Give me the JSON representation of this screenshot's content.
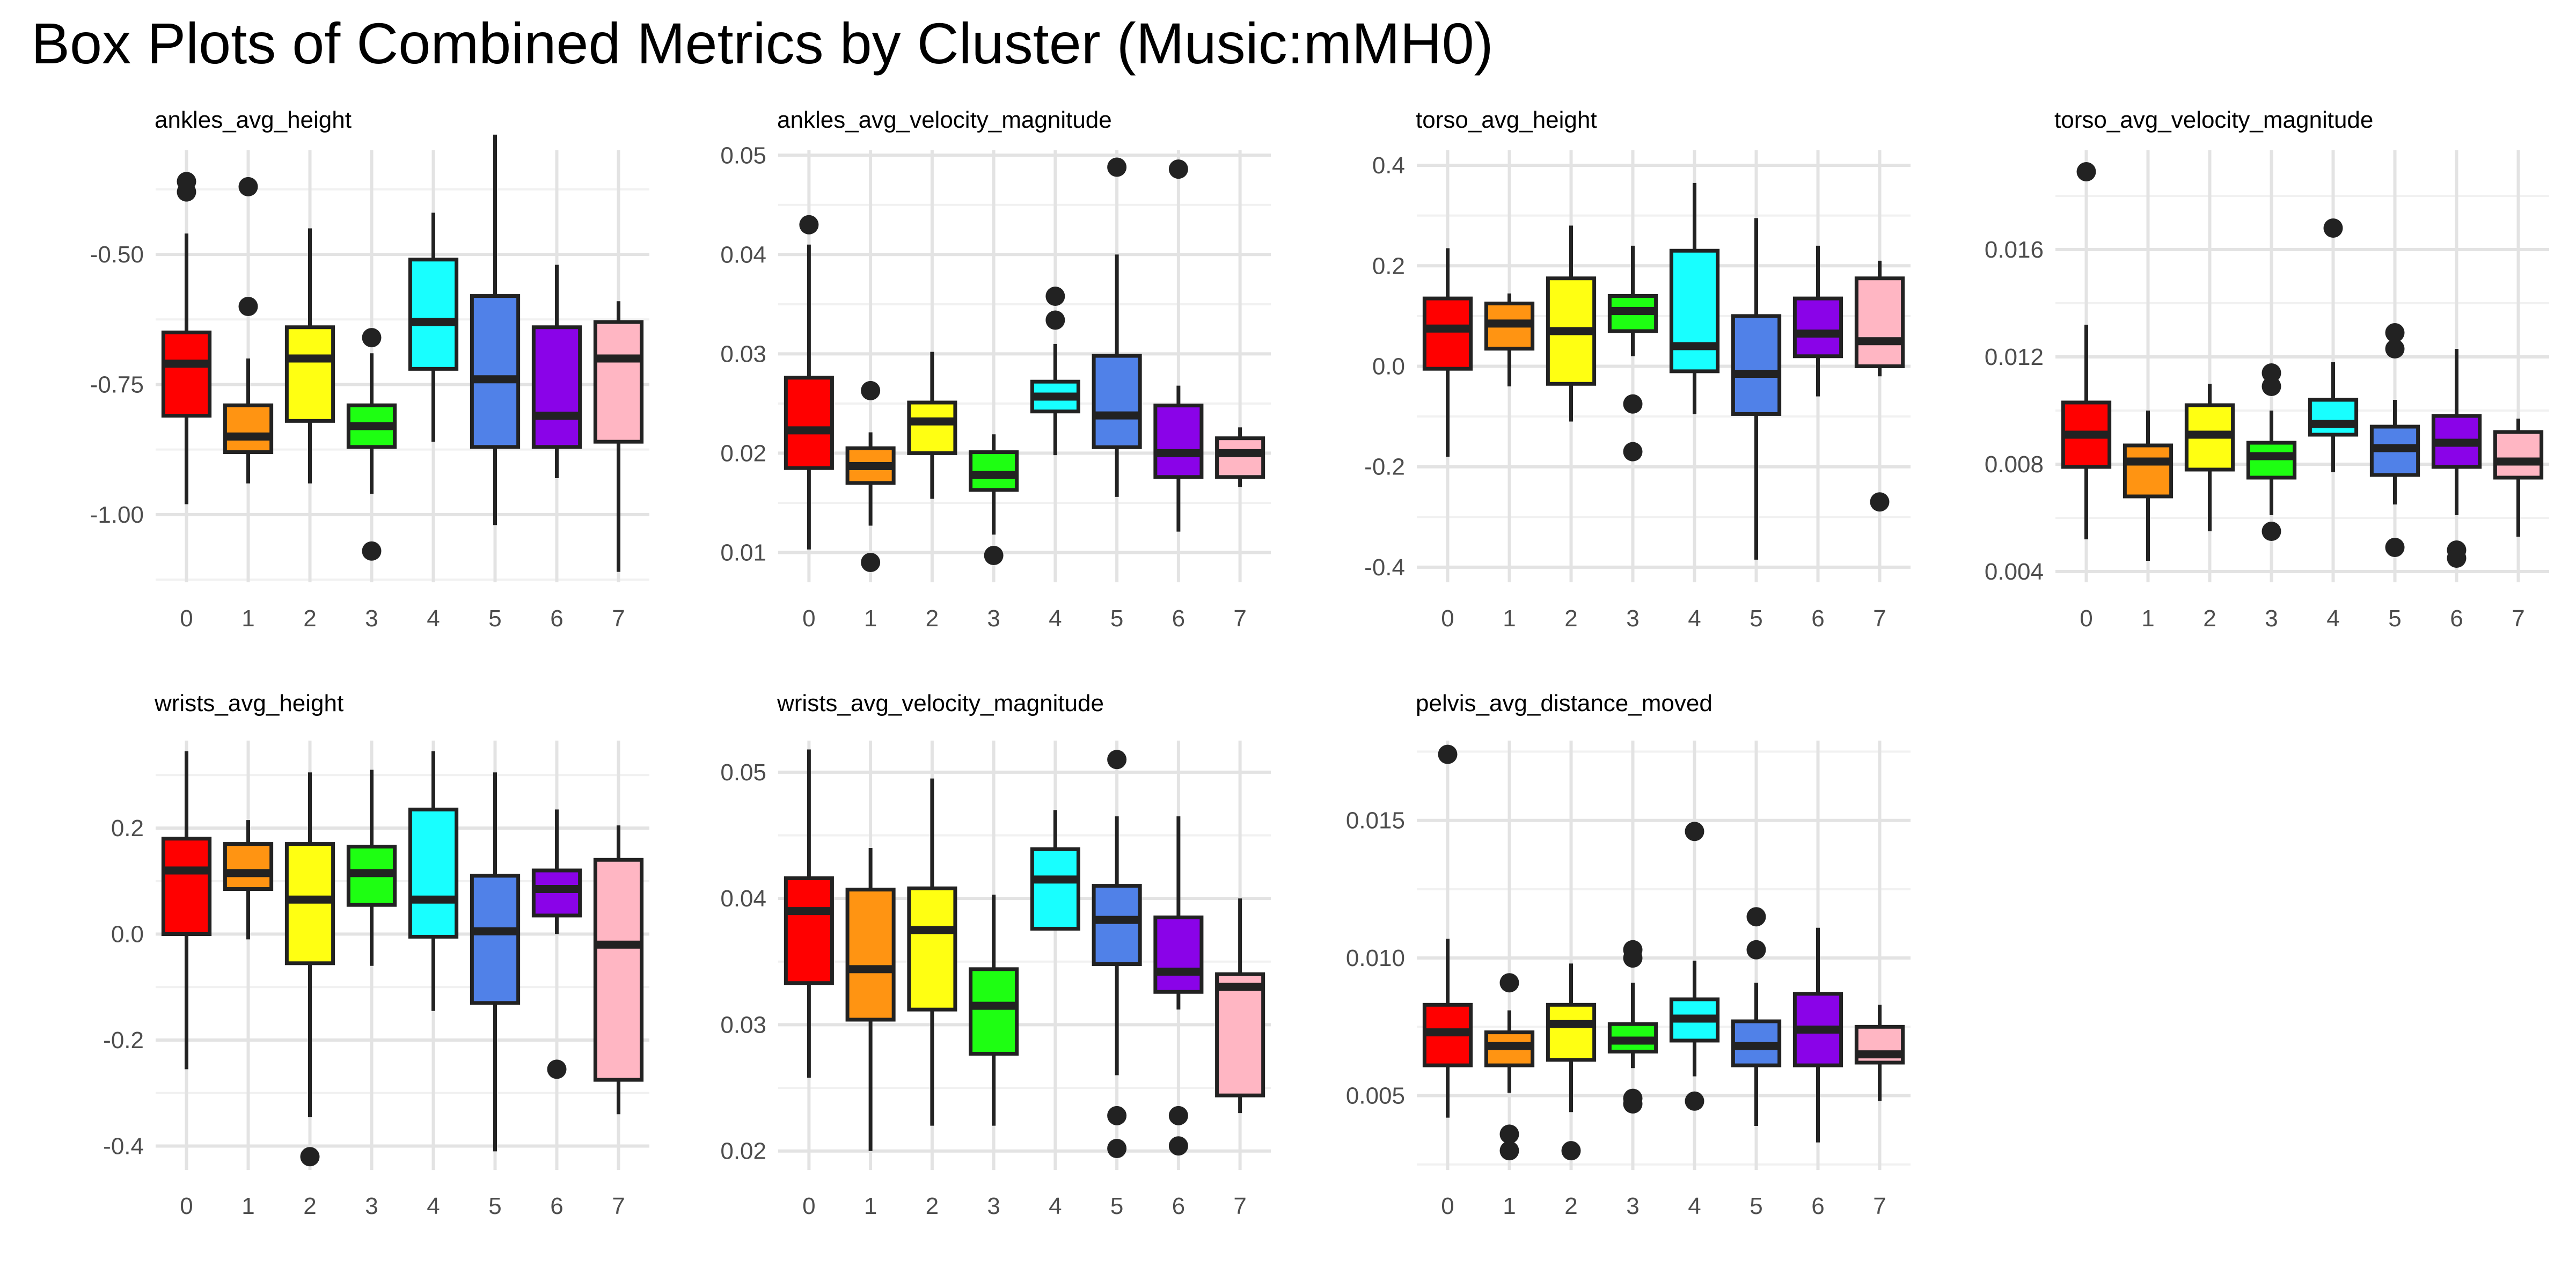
{
  "title": "Box Plots of Combined Metrics by Cluster (Music:mMH0)",
  "colors": {
    "clusters": [
      "#FF0000",
      "#FF9412",
      "#FFFF12",
      "#1EFF12",
      "#18FFFF",
      "#5081E8",
      "#8A03E8",
      "#FFB6C3"
    ],
    "outline": "#222222",
    "grid_major": "#E3E3E3",
    "grid_minor": "#F1F1F1",
    "tick_text": "#4D4D4D"
  },
  "chart_data": [
    {
      "type": "box",
      "title": "ankles_avg_height",
      "categories": [
        "0",
        "1",
        "2",
        "3",
        "4",
        "5",
        "6",
        "7"
      ],
      "ylim": [
        -1.13,
        -0.3
      ],
      "yticks": [
        -1.0,
        -0.75,
        -0.5
      ],
      "ytick_labels": [
        "-1.00",
        "-0.75",
        "-0.50"
      ],
      "boxes": [
        {
          "low": -0.98,
          "q1": -0.81,
          "median": -0.71,
          "q3": -0.65,
          "high": -0.46,
          "outliers": [
            -0.36,
            -0.38
          ]
        },
        {
          "low": -0.94,
          "q1": -0.88,
          "median": -0.85,
          "q3": -0.79,
          "high": -0.7,
          "outliers": [
            -0.37,
            -0.6
          ]
        },
        {
          "low": -0.94,
          "q1": -0.82,
          "median": -0.7,
          "q3": -0.64,
          "high": -0.45,
          "outliers": []
        },
        {
          "low": -0.96,
          "q1": -0.87,
          "median": -0.83,
          "q3": -0.79,
          "high": -0.69,
          "outliers": [
            -0.66,
            -1.07
          ]
        },
        {
          "low": -0.86,
          "q1": -0.72,
          "median": -0.63,
          "q3": -0.51,
          "high": -0.42,
          "outliers": []
        },
        {
          "low": -1.02,
          "q1": -0.87,
          "median": -0.74,
          "q3": -0.58,
          "high": -0.27,
          "outliers": []
        },
        {
          "low": -0.93,
          "q1": -0.87,
          "median": -0.81,
          "q3": -0.64,
          "high": -0.52,
          "outliers": []
        },
        {
          "low": -1.11,
          "q1": -0.86,
          "median": -0.7,
          "q3": -0.63,
          "high": -0.59,
          "outliers": []
        }
      ]
    },
    {
      "type": "box",
      "title": "ankles_avg_velocity_magnitude",
      "categories": [
        "0",
        "1",
        "2",
        "3",
        "4",
        "5",
        "6",
        "7"
      ],
      "ylim": [
        0.007,
        0.0505
      ],
      "yticks": [
        0.01,
        0.02,
        0.03,
        0.04,
        0.05
      ],
      "ytick_labels": [
        "0.01",
        "0.02",
        "0.03",
        "0.04",
        "0.05"
      ],
      "boxes": [
        {
          "low": 0.0103,
          "q1": 0.0185,
          "median": 0.0223,
          "q3": 0.0276,
          "high": 0.041,
          "outliers": [
            0.043
          ]
        },
        {
          "low": 0.0127,
          "q1": 0.017,
          "median": 0.0187,
          "q3": 0.0205,
          "high": 0.0221,
          "outliers": [
            0.0263,
            0.009
          ]
        },
        {
          "low": 0.0154,
          "q1": 0.02,
          "median": 0.0232,
          "q3": 0.0251,
          "high": 0.0302,
          "outliers": []
        },
        {
          "low": 0.0118,
          "q1": 0.0163,
          "median": 0.0178,
          "q3": 0.0201,
          "high": 0.0219,
          "outliers": [
            0.0097
          ]
        },
        {
          "low": 0.0198,
          "q1": 0.0242,
          "median": 0.0257,
          "q3": 0.0272,
          "high": 0.031,
          "outliers": [
            0.0358,
            0.0334
          ]
        },
        {
          "low": 0.0156,
          "q1": 0.0206,
          "median": 0.0238,
          "q3": 0.0298,
          "high": 0.04,
          "outliers": [
            0.0488
          ]
        },
        {
          "low": 0.0121,
          "q1": 0.0176,
          "median": 0.02,
          "q3": 0.0248,
          "high": 0.0268,
          "outliers": [
            0.0486
          ]
        },
        {
          "low": 0.0166,
          "q1": 0.0176,
          "median": 0.02,
          "q3": 0.0215,
          "high": 0.0226,
          "outliers": []
        }
      ]
    },
    {
      "type": "box",
      "title": "torso_avg_height",
      "categories": [
        "0",
        "1",
        "2",
        "3",
        "4",
        "5",
        "6",
        "7"
      ],
      "ylim": [
        -0.43,
        0.43
      ],
      "yticks": [
        -0.4,
        -0.2,
        0.0,
        0.2,
        0.4
      ],
      "ytick_labels": [
        "-0.4",
        "-0.2",
        "0.0",
        "0.2",
        "0.4"
      ],
      "boxes": [
        {
          "low": -0.18,
          "q1": -0.005,
          "median": 0.075,
          "q3": 0.135,
          "high": 0.235,
          "outliers": []
        },
        {
          "low": -0.04,
          "q1": 0.035,
          "median": 0.085,
          "q3": 0.125,
          "high": 0.145,
          "outliers": []
        },
        {
          "low": -0.11,
          "q1": -0.035,
          "median": 0.07,
          "q3": 0.175,
          "high": 0.28,
          "outliers": []
        },
        {
          "low": 0.02,
          "q1": 0.07,
          "median": 0.11,
          "q3": 0.14,
          "high": 0.24,
          "outliers": [
            -0.075,
            -0.17
          ]
        },
        {
          "low": -0.095,
          "q1": -0.01,
          "median": 0.04,
          "q3": 0.23,
          "high": 0.365,
          "outliers": []
        },
        {
          "low": -0.385,
          "q1": -0.095,
          "median": -0.015,
          "q3": 0.1,
          "high": 0.295,
          "outliers": []
        },
        {
          "low": -0.06,
          "q1": 0.02,
          "median": 0.065,
          "q3": 0.135,
          "high": 0.24,
          "outliers": []
        },
        {
          "low": -0.02,
          "q1": 0.0,
          "median": 0.05,
          "q3": 0.175,
          "high": 0.21,
          "outliers": [
            -0.27
          ]
        }
      ]
    },
    {
      "type": "box",
      "title": "torso_avg_velocity_magnitude",
      "categories": [
        "0",
        "1",
        "2",
        "3",
        "4",
        "5",
        "6",
        "7"
      ],
      "ylim": [
        0.0036,
        0.0197
      ],
      "yticks": [
        0.004,
        0.008,
        0.012,
        0.016
      ],
      "ytick_labels": [
        "0.004",
        "0.008",
        "0.012",
        "0.016"
      ],
      "boxes": [
        {
          "low": 0.0052,
          "q1": 0.0079,
          "median": 0.0091,
          "q3": 0.0103,
          "high": 0.0132,
          "outliers": [
            0.0189
          ]
        },
        {
          "low": 0.0044,
          "q1": 0.0068,
          "median": 0.0081,
          "q3": 0.0087,
          "high": 0.01,
          "outliers": []
        },
        {
          "low": 0.0055,
          "q1": 0.0078,
          "median": 0.0091,
          "q3": 0.0102,
          "high": 0.011,
          "outliers": []
        },
        {
          "low": 0.0061,
          "q1": 0.0075,
          "median": 0.0083,
          "q3": 0.0088,
          "high": 0.01,
          "outliers": [
            0.0114,
            0.0109,
            0.0055
          ]
        },
        {
          "low": 0.0077,
          "q1": 0.0091,
          "median": 0.0095,
          "q3": 0.0104,
          "high": 0.0118,
          "outliers": [
            0.0168
          ]
        },
        {
          "low": 0.0065,
          "q1": 0.0076,
          "median": 0.0086,
          "q3": 0.0094,
          "high": 0.0104,
          "outliers": [
            0.0129,
            0.0123,
            0.0049
          ]
        },
        {
          "low": 0.0061,
          "q1": 0.0079,
          "median": 0.0088,
          "q3": 0.0098,
          "high": 0.0123,
          "outliers": [
            0.0048,
            0.0045
          ]
        },
        {
          "low": 0.0053,
          "q1": 0.0075,
          "median": 0.0081,
          "q3": 0.0092,
          "high": 0.0097,
          "outliers": []
        }
      ]
    },
    {
      "type": "box",
      "title": "wrists_avg_height",
      "categories": [
        "0",
        "1",
        "2",
        "3",
        "4",
        "5",
        "6",
        "7"
      ],
      "ylim": [
        -0.445,
        0.365
      ],
      "yticks": [
        -0.4,
        -0.2,
        0.0,
        0.2
      ],
      "ytick_labels": [
        "-0.4",
        "-0.2",
        "0.0",
        "0.2"
      ],
      "boxes": [
        {
          "low": -0.255,
          "q1": 0.0,
          "median": 0.12,
          "q3": 0.18,
          "high": 0.345,
          "outliers": []
        },
        {
          "low": -0.01,
          "q1": 0.085,
          "median": 0.115,
          "q3": 0.17,
          "high": 0.215,
          "outliers": []
        },
        {
          "low": -0.345,
          "q1": -0.055,
          "median": 0.065,
          "q3": 0.17,
          "high": 0.305,
          "outliers": [
            -0.42
          ]
        },
        {
          "low": -0.06,
          "q1": 0.055,
          "median": 0.115,
          "q3": 0.165,
          "high": 0.31,
          "outliers": []
        },
        {
          "low": -0.145,
          "q1": -0.005,
          "median": 0.065,
          "q3": 0.235,
          "high": 0.345,
          "outliers": []
        },
        {
          "low": -0.41,
          "q1": -0.13,
          "median": 0.005,
          "q3": 0.11,
          "high": 0.305,
          "outliers": []
        },
        {
          "low": 0.0,
          "q1": 0.035,
          "median": 0.085,
          "q3": 0.12,
          "high": 0.235,
          "outliers": [
            -0.255
          ]
        },
        {
          "low": -0.34,
          "q1": -0.275,
          "median": -0.02,
          "q3": 0.14,
          "high": 0.205,
          "outliers": []
        }
      ]
    },
    {
      "type": "box",
      "title": "wrists_avg_velocity_magnitude",
      "categories": [
        "0",
        "1",
        "2",
        "3",
        "4",
        "5",
        "6",
        "7"
      ],
      "ylim": [
        0.0185,
        0.0525
      ],
      "yticks": [
        0.02,
        0.03,
        0.04,
        0.05
      ],
      "ytick_labels": [
        "0.02",
        "0.03",
        "0.04",
        "0.05"
      ],
      "boxes": [
        {
          "low": 0.0258,
          "q1": 0.0333,
          "median": 0.039,
          "q3": 0.0416,
          "high": 0.0518,
          "outliers": []
        },
        {
          "low": 0.02,
          "q1": 0.0304,
          "median": 0.0344,
          "q3": 0.0407,
          "high": 0.044,
          "outliers": []
        },
        {
          "low": 0.022,
          "q1": 0.0312,
          "median": 0.0375,
          "q3": 0.0408,
          "high": 0.0495,
          "outliers": []
        },
        {
          "low": 0.022,
          "q1": 0.0277,
          "median": 0.0315,
          "q3": 0.0344,
          "high": 0.0403,
          "outliers": []
        },
        {
          "low": 0.0376,
          "q1": 0.0376,
          "median": 0.0415,
          "q3": 0.0439,
          "high": 0.047,
          "outliers": []
        },
        {
          "low": 0.026,
          "q1": 0.0348,
          "median": 0.0383,
          "q3": 0.041,
          "high": 0.0465,
          "outliers": [
            0.051,
            0.0228,
            0.0202
          ]
        },
        {
          "low": 0.0312,
          "q1": 0.0326,
          "median": 0.0342,
          "q3": 0.0385,
          "high": 0.0465,
          "outliers": [
            0.0228,
            0.0204
          ]
        },
        {
          "low": 0.023,
          "q1": 0.0244,
          "median": 0.033,
          "q3": 0.034,
          "high": 0.04,
          "outliers": []
        }
      ]
    },
    {
      "type": "box",
      "title": "pelvis_avg_distance_moved",
      "categories": [
        "0",
        "1",
        "2",
        "3",
        "4",
        "5",
        "6",
        "7"
      ],
      "ylim": [
        0.0023,
        0.0179
      ],
      "yticks": [
        0.005,
        0.01,
        0.015
      ],
      "ytick_labels": [
        "0.005",
        "0.010",
        "0.015"
      ],
      "boxes": [
        {
          "low": 0.0042,
          "q1": 0.0061,
          "median": 0.0073,
          "q3": 0.0083,
          "high": 0.0107,
          "outliers": [
            0.0174
          ]
        },
        {
          "low": 0.0051,
          "q1": 0.0061,
          "median": 0.0068,
          "q3": 0.0073,
          "high": 0.0081,
          "outliers": [
            0.0091,
            0.0036,
            0.003
          ]
        },
        {
          "low": 0.0044,
          "q1": 0.0063,
          "median": 0.0076,
          "q3": 0.0083,
          "high": 0.0098,
          "outliers": [
            0.003
          ]
        },
        {
          "low": 0.006,
          "q1": 0.0066,
          "median": 0.007,
          "q3": 0.0076,
          "high": 0.0091,
          "outliers": [
            0.0103,
            0.01,
            0.0049,
            0.0047
          ]
        },
        {
          "low": 0.0057,
          "q1": 0.007,
          "median": 0.0078,
          "q3": 0.0085,
          "high": 0.0099,
          "outliers": [
            0.0146,
            0.0048
          ]
        },
        {
          "low": 0.0039,
          "q1": 0.0061,
          "median": 0.0068,
          "q3": 0.0077,
          "high": 0.0091,
          "outliers": [
            0.0115,
            0.0103
          ]
        },
        {
          "low": 0.0033,
          "q1": 0.0061,
          "median": 0.0074,
          "q3": 0.0087,
          "high": 0.0111,
          "outliers": []
        },
        {
          "low": 0.0048,
          "q1": 0.0062,
          "median": 0.0065,
          "q3": 0.0075,
          "high": 0.0083,
          "outliers": []
        }
      ]
    }
  ]
}
